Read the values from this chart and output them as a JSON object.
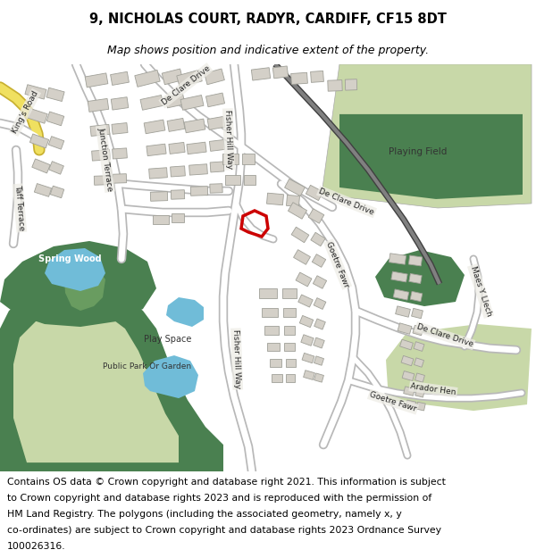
{
  "title_line1": "9, NICHOLAS COURT, RADYR, CARDIFF, CF15 8DT",
  "title_line2": "Map shows position and indicative extent of the property.",
  "footer_lines": [
    "Contains OS data © Crown copyright and database right 2021. This information is subject",
    "to Crown copyright and database rights 2023 and is reproduced with the permission of",
    "HM Land Registry. The polygons (including the associated geometry, namely x, y",
    "co-ordinates) are subject to Crown copyright and database rights 2023 Ordnance Survey",
    "100026316."
  ],
  "map_bg": "#eeede6",
  "road_white": "#ffffff",
  "road_outline": "#c8c8c8",
  "road_yellow": "#f0e060",
  "road_yellow_outline": "#c8b030",
  "building_fill": "#d4d0c8",
  "building_edge": "#a0a098",
  "green_light": "#c8d8a8",
  "green_dark": "#4a8050",
  "green_medium": "#88b870",
  "water_blue": "#70bcd8",
  "highlight_red": "#cc0000",
  "railway_gray": "#808080",
  "railway_dark": "#404040",
  "white": "#ffffff",
  "footer_fontsize": 7.8,
  "title_fontsize": 10.5,
  "subtitle_fontsize": 9.0,
  "label_fontsize": 6.5
}
